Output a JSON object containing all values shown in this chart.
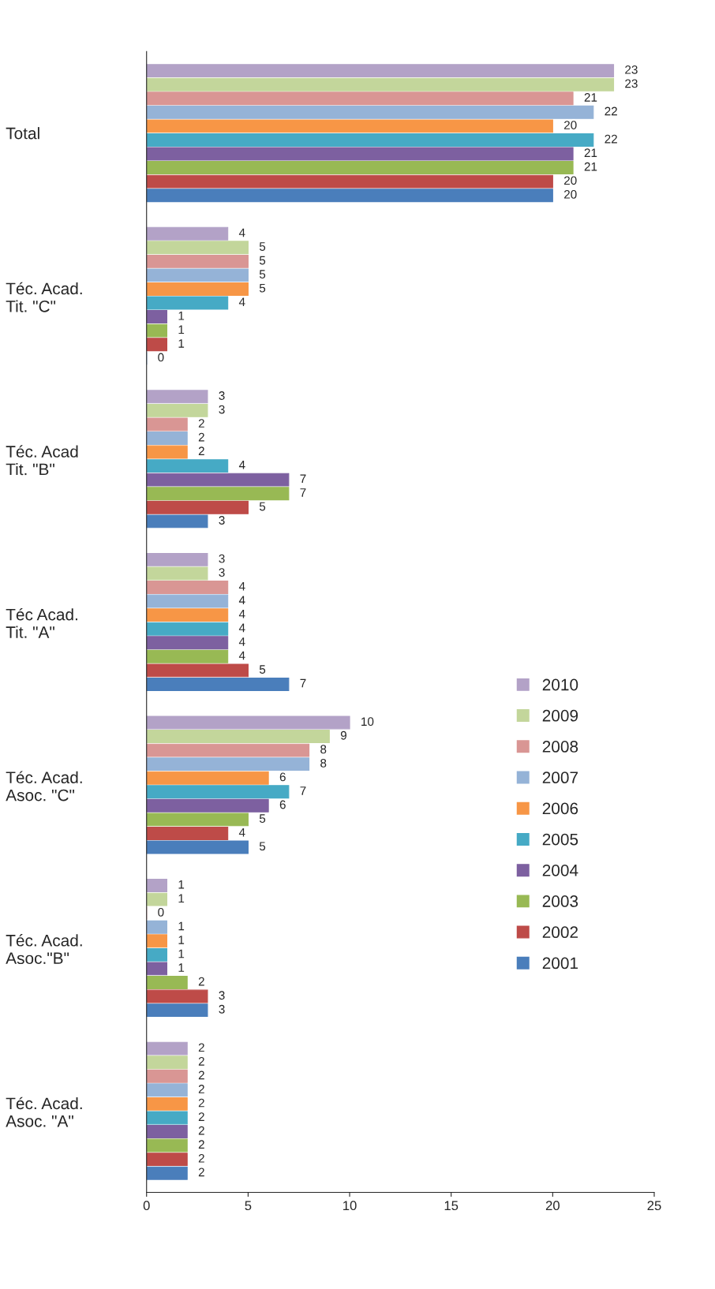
{
  "chart_data": {
    "type": "bar",
    "orientation": "horizontal",
    "categories": [
      "Total",
      "Téc. Acad.\nTit. \"C\"",
      "Téc. Acad\nTit. \"B\"",
      "Téc Acad.\nTit. \"A\"",
      "Téc. Acad.\nAsoc. \"C\"",
      "Téc. Acad.\nAsoc.\"B\"",
      "Téc. Acad.\nAsoc. \"A\""
    ],
    "series": [
      {
        "name": "2001",
        "color": "#4a7ebb",
        "values": [
          20,
          0,
          3,
          7,
          5,
          3,
          2
        ]
      },
      {
        "name": "2002",
        "color": "#be4b48",
        "values": [
          20,
          1,
          5,
          5,
          4,
          3,
          2
        ]
      },
      {
        "name": "2003",
        "color": "#98b954",
        "values": [
          21,
          1,
          7,
          4,
          5,
          2,
          2
        ]
      },
      {
        "name": "2004",
        "color": "#7d60a0",
        "values": [
          21,
          1,
          7,
          4,
          6,
          1,
          2
        ]
      },
      {
        "name": "2005",
        "color": "#46aac5",
        "values": [
          22,
          4,
          4,
          4,
          7,
          1,
          2
        ]
      },
      {
        "name": "2006",
        "color": "#f79646",
        "values": [
          20,
          5,
          2,
          4,
          6,
          1,
          2
        ]
      },
      {
        "name": "2007",
        "color": "#95b3d7",
        "values": [
          22,
          5,
          2,
          4,
          8,
          1,
          2
        ]
      },
      {
        "name": "2008",
        "color": "#d99694",
        "values": [
          21,
          5,
          2,
          4,
          8,
          0,
          2
        ]
      },
      {
        "name": "2009",
        "color": "#c3d69b",
        "values": [
          23,
          5,
          3,
          3,
          9,
          1,
          2
        ]
      },
      {
        "name": "2010",
        "color": "#b3a2c7",
        "values": [
          23,
          4,
          3,
          3,
          10,
          1,
          2
        ]
      }
    ],
    "xlim": [
      0,
      25
    ],
    "xticks": [
      0,
      5,
      10,
      15,
      20,
      25
    ],
    "data_labels": true,
    "grid": false,
    "legend": "right"
  }
}
